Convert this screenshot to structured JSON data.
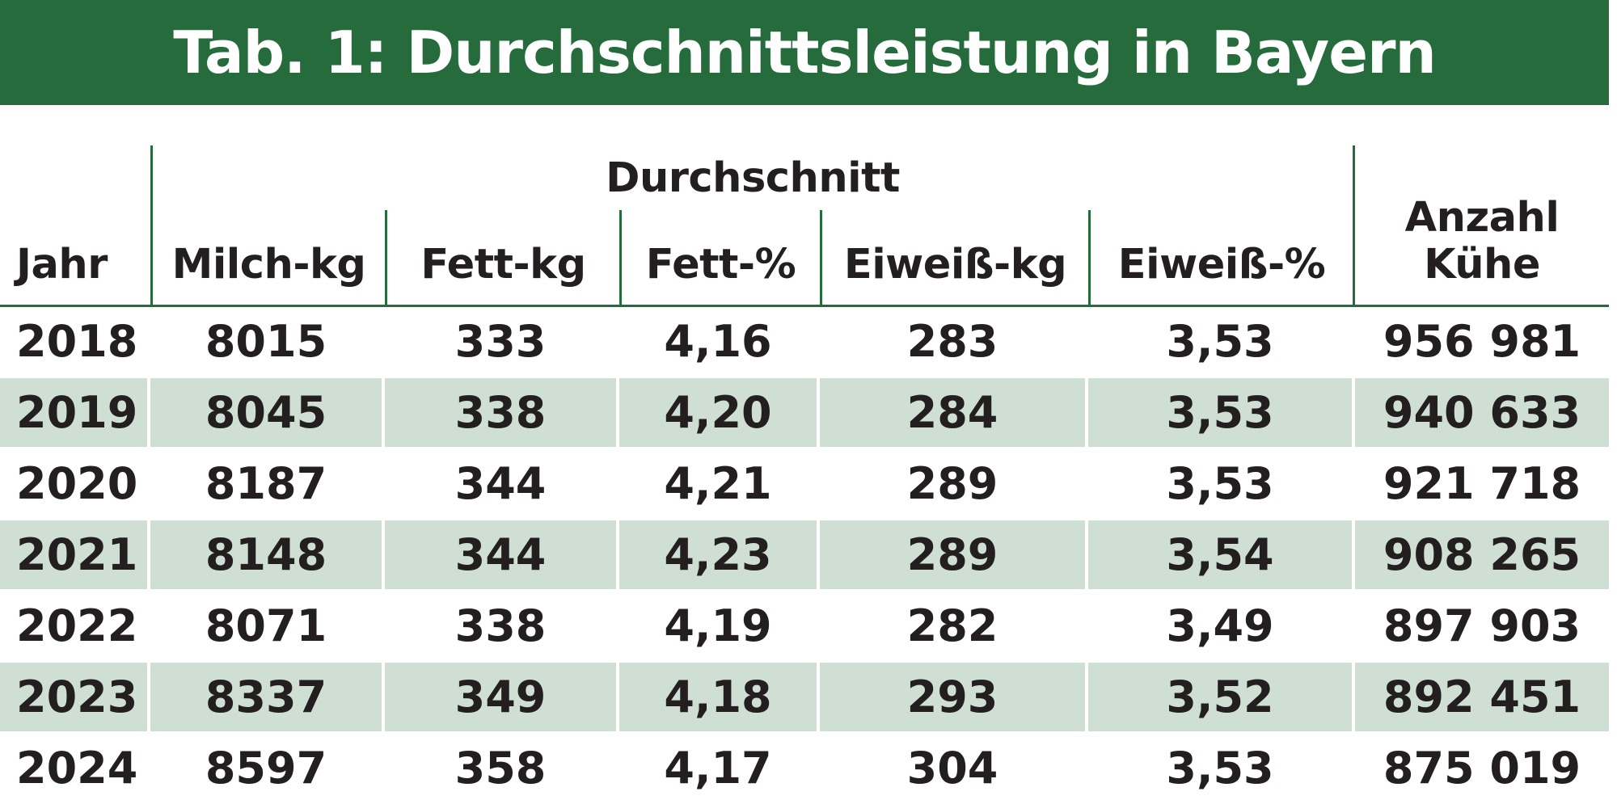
{
  "title": "Tab. 1: Durchschnittsleistung in Bayern",
  "table": {
    "group_header": "Durchschnitt",
    "columns": {
      "jahr": "Jahr",
      "milch_kg": "Milch-kg",
      "fett_kg": "Fett-kg",
      "fett_pct": "Fett-%",
      "eiweiss_kg": "Eiweiß-kg",
      "eiweiss_pct": "Eiweiß-%",
      "anzahl_line1": "Anzahl",
      "anzahl_line2": "Kühe"
    },
    "rows": [
      {
        "jahr": "2018",
        "milch_kg": "8015",
        "fett_kg": "333",
        "fett_pct": "4,16",
        "eiweiss_kg": "283",
        "eiweiss_pct": "3,53",
        "anzahl_kuehe": "956 981"
      },
      {
        "jahr": "2019",
        "milch_kg": "8045",
        "fett_kg": "338",
        "fett_pct": "4,20",
        "eiweiss_kg": "284",
        "eiweiss_pct": "3,53",
        "anzahl_kuehe": "940 633"
      },
      {
        "jahr": "2020",
        "milch_kg": "8187",
        "fett_kg": "344",
        "fett_pct": "4,21",
        "eiweiss_kg": "289",
        "eiweiss_pct": "3,53",
        "anzahl_kuehe": "921 718"
      },
      {
        "jahr": "2021",
        "milch_kg": "8148",
        "fett_kg": "344",
        "fett_pct": "4,23",
        "eiweiss_kg": "289",
        "eiweiss_pct": "3,54",
        "anzahl_kuehe": "908 265"
      },
      {
        "jahr": "2022",
        "milch_kg": "8071",
        "fett_kg": "338",
        "fett_pct": "4,19",
        "eiweiss_kg": "282",
        "eiweiss_pct": "3,49",
        "anzahl_kuehe": "897 903"
      },
      {
        "jahr": "2023",
        "milch_kg": "8337",
        "fett_kg": "349",
        "fett_pct": "4,18",
        "eiweiss_kg": "293",
        "eiweiss_pct": "3,52",
        "anzahl_kuehe": "892 451"
      },
      {
        "jahr": "2024",
        "milch_kg": "8597",
        "fett_kg": "358",
        "fett_pct": "4,17",
        "eiweiss_kg": "304",
        "eiweiss_pct": "3,53",
        "anzahl_kuehe": "875 019"
      }
    ]
  },
  "colors": {
    "header_green": "#256b3c",
    "row_stripe": "#cfdfd4",
    "text": "#231f20"
  }
}
